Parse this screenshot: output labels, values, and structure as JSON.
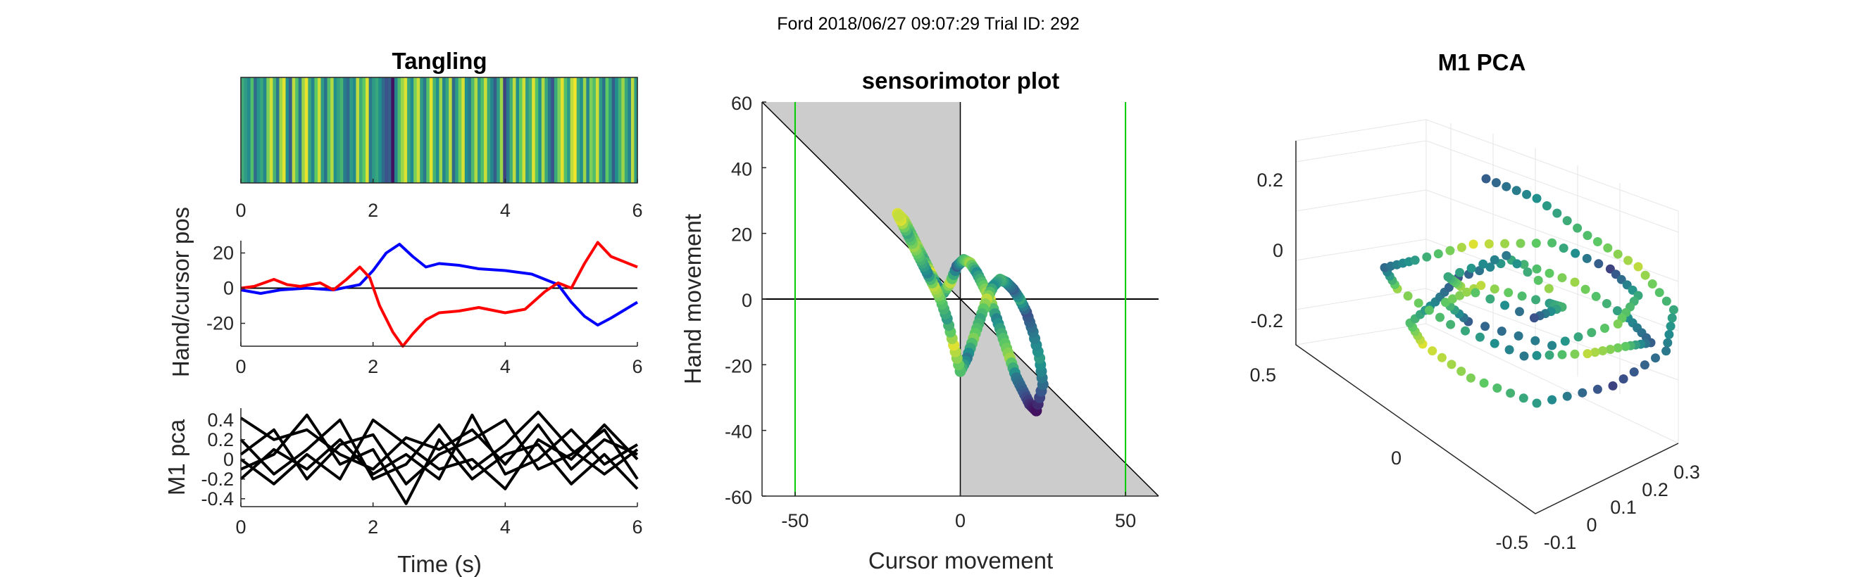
{
  "suptitle": "Ford 2018/06/27 09:07:29 Trial ID: 292",
  "colors": {
    "hand_pos": "#0000ff",
    "cursor_pos": "#ff0000",
    "m1_traces": "#000000",
    "boundary": "#00cc00",
    "tangle_region": "#cccccc",
    "colormap": [
      "#440154",
      "#3b528b",
      "#21908d",
      "#5dc963",
      "#fde725"
    ]
  },
  "chart_data": [
    {
      "type": "heatmap",
      "title": "Tangling",
      "xlim": [
        0,
        6
      ],
      "xticks": [
        "0",
        "2",
        "4",
        "6"
      ],
      "colormap": "viridis",
      "values": [
        0.62,
        0.55,
        0.48,
        0.7,
        0.35,
        0.52,
        0.6,
        0.45,
        0.8,
        0.93,
        0.65,
        0.4,
        0.85,
        0.96,
        0.5,
        0.3,
        0.9,
        0.7,
        0.4,
        0.85,
        0.97,
        0.6,
        0.45,
        0.75,
        0.92,
        0.55,
        0.38,
        0.7,
        0.88,
        0.5,
        0.58,
        0.66,
        0.42,
        0.35,
        0.55,
        0.48,
        0.9,
        0.62,
        0.75,
        0.95,
        0.4,
        0.55,
        0.6,
        0.5,
        0.35,
        0.25,
        0.3,
        0.05,
        0.45,
        0.7,
        0.85,
        0.95,
        0.6,
        0.48,
        0.8,
        0.92,
        0.55,
        0.4,
        0.72,
        0.96,
        0.65,
        0.5,
        0.85,
        0.45,
        0.6,
        0.9,
        0.35,
        0.55,
        0.78,
        0.94,
        0.5,
        0.42,
        0.68,
        0.88,
        0.55,
        0.7,
        0.92,
        0.6,
        0.45,
        0.3,
        0.55,
        0.85,
        0.2,
        0.4,
        0.62,
        0.9,
        0.5,
        0.75,
        0.93,
        0.55,
        0.65,
        0.95,
        0.72,
        0.5,
        0.88,
        0.6,
        0.4,
        0.25,
        0.6,
        0.8,
        0.96,
        0.7,
        0.55,
        0.9,
        0.98,
        0.62,
        0.5,
        0.85,
        0.45,
        0.8,
        0.7,
        0.92,
        0.55,
        0.38,
        0.75,
        0.55,
        0.3,
        0.5,
        0.65,
        0.85,
        0.6,
        0.45,
        0.9,
        0.55
      ]
    },
    {
      "type": "line",
      "ylabel": "Hand/cursor pos",
      "xlim": [
        0,
        6
      ],
      "ylim": [
        -33,
        27
      ],
      "xticks": [
        "0",
        "2",
        "4",
        "6"
      ],
      "yticks": [
        "20",
        "0",
        "-20"
      ],
      "yticks_values": [
        20,
        0,
        -20
      ],
      "zero_line": true,
      "series": [
        {
          "key": "hand",
          "x": [
            0,
            0.3,
            0.6,
            1.0,
            1.4,
            1.8,
            2.0,
            2.2,
            2.4,
            2.6,
            2.8,
            3.0,
            3.3,
            3.6,
            4.0,
            4.4,
            4.8,
            5.0,
            5.2,
            5.4,
            5.6,
            6.0
          ],
          "y": [
            -1,
            -3,
            -1,
            0,
            -1,
            2,
            10,
            20,
            25,
            18,
            12,
            14,
            13,
            11,
            10,
            8,
            2,
            -8,
            -16,
            -21,
            -17,
            -8
          ]
        },
        {
          "key": "cursor",
          "x": [
            0,
            0.2,
            0.5,
            0.7,
            0.9,
            1.2,
            1.4,
            1.6,
            1.8,
            1.95,
            2.1,
            2.3,
            2.45,
            2.6,
            2.8,
            3.0,
            3.3,
            3.6,
            4.0,
            4.3,
            4.6,
            4.8,
            5.0,
            5.2,
            5.4,
            5.6,
            6.0
          ],
          "y": [
            0,
            1,
            5,
            2,
            1,
            3,
            -1,
            5,
            12,
            6,
            -10,
            -25,
            -33,
            -26,
            -18,
            -14,
            -13,
            -11,
            -14,
            -12,
            -2,
            3,
            0,
            14,
            26,
            18,
            12
          ]
        }
      ]
    },
    {
      "type": "line",
      "ylabel": "M1 pca",
      "xlabel": "Time (s)",
      "xlim": [
        0,
        6
      ],
      "ylim": [
        -0.48,
        0.52
      ],
      "xticks": [
        "0",
        "2",
        "4",
        "6"
      ],
      "yticks": [
        "0.4",
        "0.2",
        "0",
        "-0.2",
        "-0.4"
      ],
      "yticks_values": [
        0.4,
        0.2,
        0,
        -0.2,
        -0.4
      ],
      "series": [
        {
          "x": [
            0,
            0.5,
            1.0,
            1.5,
            2.0,
            2.5,
            3.0,
            3.5,
            4.0,
            4.5,
            5.0,
            5.5,
            6.0
          ],
          "y": [
            0.42,
            0.2,
            0.3,
            0.05,
            -0.1,
            0.22,
            0.1,
            0.3,
            -0.05,
            0.35,
            -0.1,
            0.2,
            0.05
          ]
        },
        {
          "x": [
            0,
            0.5,
            1.0,
            1.5,
            2.0,
            2.5,
            3.0,
            3.5,
            4.0,
            4.5,
            5.0,
            5.5,
            6.0
          ],
          "y": [
            0.2,
            -0.15,
            0.1,
            0.4,
            -0.2,
            -0.05,
            0.35,
            -0.1,
            0.15,
            0.48,
            0.1,
            -0.15,
            0.1
          ]
        },
        {
          "x": [
            0,
            0.5,
            1.0,
            1.5,
            2.0,
            2.5,
            3.0,
            3.5,
            4.0,
            4.5,
            5.0,
            5.5,
            6.0
          ],
          "y": [
            0.05,
            0.3,
            -0.2,
            0.15,
            0.25,
            -0.25,
            0.05,
            0.2,
            0.4,
            -0.1,
            0.05,
            0.3,
            -0.2
          ]
        },
        {
          "x": [
            0,
            0.5,
            1.0,
            1.5,
            2.0,
            2.5,
            3.0,
            3.5,
            4.0,
            4.5,
            5.0,
            5.5,
            6.0
          ],
          "y": [
            -0.1,
            0.05,
            0.45,
            -0.05,
            0.1,
            -0.45,
            0.2,
            -0.2,
            0.05,
            0.15,
            -0.25,
            0.05,
            -0.3
          ]
        },
        {
          "x": [
            0,
            0.5,
            1.0,
            1.5,
            2.0,
            2.5,
            3.0,
            3.5,
            4.0,
            4.5,
            5.0,
            5.5,
            6.0
          ],
          "y": [
            -0.2,
            0.1,
            -0.1,
            0.2,
            -0.15,
            0.05,
            -0.2,
            0.45,
            -0.15,
            0.0,
            0.3,
            -0.05,
            0.15
          ]
        },
        {
          "x": [
            0,
            0.5,
            1.0,
            1.5,
            2.0,
            2.5,
            3.0,
            3.5,
            4.0,
            4.5,
            5.0,
            5.5,
            6.0
          ],
          "y": [
            0.0,
            -0.25,
            0.05,
            -0.2,
            0.4,
            0.15,
            -0.1,
            0.0,
            -0.3,
            0.2,
            0.0,
            0.35,
            0.0
          ]
        }
      ]
    },
    {
      "type": "scatter",
      "title": "sensorimotor plot",
      "xlabel": "Cursor movement",
      "ylabel": "Hand movement",
      "xlim": [
        -60,
        60
      ],
      "ylim": [
        -60,
        60
      ],
      "xticks": [
        "-50",
        "0",
        "50"
      ],
      "xticks_values": [
        -50,
        0,
        50
      ],
      "yticks": [
        "60",
        "40",
        "20",
        "0",
        "-20",
        "-40",
        "-60"
      ],
      "yticks_values": [
        60,
        40,
        20,
        0,
        -20,
        -40,
        -60
      ],
      "vertical_lines_x": [
        -50,
        50
      ],
      "colormap": "viridis",
      "x": [
        -19,
        -17,
        -15,
        -13,
        -11,
        -9,
        -7,
        -5,
        -3,
        -1,
        1,
        3,
        5,
        7,
        9,
        11,
        13,
        15,
        17,
        19,
        21,
        23,
        25,
        24,
        22,
        20,
        18,
        16,
        14,
        12,
        10,
        8,
        6,
        4,
        2,
        0,
        -2,
        -4,
        -6,
        -8,
        -10,
        -12,
        -14,
        -16,
        -18,
        -19
      ],
      "y": [
        26,
        24,
        20,
        16,
        12,
        8,
        4,
        2,
        5,
        10,
        12,
        11,
        8,
        4,
        0,
        -6,
        -12,
        -18,
        -24,
        -28,
        -32,
        -34,
        -26,
        -18,
        -10,
        -4,
        0,
        3,
        5,
        6,
        4,
        0,
        -6,
        -12,
        -18,
        -22,
        -14,
        -6,
        0,
        4,
        8,
        12,
        16,
        20,
        24,
        26
      ],
      "c": [
        0.95,
        0.9,
        0.7,
        0.85,
        0.6,
        0.95,
        0.4,
        0.55,
        0.9,
        0.3,
        0.65,
        0.85,
        0.5,
        0.75,
        0.95,
        0.45,
        0.7,
        0.85,
        0.4,
        0.3,
        0.15,
        0.05,
        0.35,
        0.55,
        0.4,
        0.25,
        0.6,
        0.3,
        0.45,
        0.65,
        0.5,
        0.9,
        0.6,
        0.8,
        0.4,
        0.7,
        0.95,
        0.55,
        0.75,
        0.9,
        0.45,
        0.65,
        0.85,
        0.6,
        0.95,
        0.9
      ]
    },
    {
      "type": "scatter",
      "title": "M1 PCA",
      "colormap": "viridis",
      "zticks": [
        "0.2",
        "0",
        "-0.2"
      ],
      "xticks": [
        "-0.1",
        "0",
        "0.1",
        "0.2",
        "0.3"
      ],
      "yticks": [
        "0.5",
        "0",
        "-0.5"
      ],
      "points_3d": [
        [
          0.05,
          0.1,
          0.25,
          0.3
        ],
        [
          0.1,
          0.0,
          0.2,
          0.5
        ],
        [
          0.15,
          -0.1,
          0.12,
          0.7
        ],
        [
          0.2,
          -0.2,
          0.05,
          0.9
        ],
        [
          0.22,
          -0.3,
          -0.05,
          0.6
        ],
        [
          0.18,
          -0.35,
          -0.15,
          0.4
        ],
        [
          0.1,
          -0.3,
          -0.22,
          0.2
        ],
        [
          0.0,
          -0.2,
          -0.25,
          0.55
        ],
        [
          -0.08,
          -0.1,
          -0.2,
          0.8
        ],
        [
          -0.1,
          0.05,
          -0.1,
          0.95
        ],
        [
          -0.05,
          0.2,
          0.0,
          0.7
        ],
        [
          0.05,
          0.3,
          0.1,
          0.45
        ],
        [
          0.12,
          0.35,
          0.18,
          0.25
        ],
        [
          0.2,
          0.3,
          0.22,
          0.6
        ],
        [
          0.25,
          0.15,
          0.15,
          0.85
        ],
        [
          0.28,
          0.0,
          0.05,
          0.5
        ],
        [
          0.25,
          -0.15,
          -0.05,
          0.3
        ],
        [
          0.15,
          -0.25,
          -0.12,
          0.75
        ],
        [
          0.05,
          -0.3,
          -0.18,
          0.9
        ],
        [
          -0.05,
          -0.25,
          -0.2,
          0.4
        ],
        [
          -0.12,
          -0.1,
          -0.12,
          0.65
        ],
        [
          -0.15,
          0.05,
          -0.02,
          0.85
        ],
        [
          -0.1,
          0.2,
          0.08,
          0.35
        ],
        [
          0.0,
          0.28,
          0.15,
          0.55
        ],
        [
          0.1,
          0.25,
          0.2,
          0.95
        ],
        [
          0.18,
          0.1,
          0.18,
          0.7
        ],
        [
          0.22,
          -0.05,
          0.1,
          0.2
        ],
        [
          0.2,
          -0.2,
          0.0,
          0.6
        ],
        [
          0.12,
          -0.28,
          -0.1,
          0.8
        ],
        [
          0.02,
          -0.22,
          -0.15,
          0.45
        ],
        [
          -0.06,
          -0.05,
          -0.08,
          0.3
        ],
        [
          -0.02,
          0.12,
          0.02,
          0.75
        ],
        [
          0.08,
          0.18,
          0.1,
          0.9
        ],
        [
          0.15,
          0.05,
          0.05,
          0.55
        ],
        [
          0.1,
          -0.1,
          -0.02,
          0.65
        ],
        [
          0.02,
          -0.15,
          -0.08,
          0.25
        ],
        [
          -0.05,
          0.0,
          0.0,
          0.85
        ],
        [
          0.0,
          0.15,
          0.08,
          0.6
        ],
        [
          0.08,
          0.08,
          0.12,
          0.4
        ],
        [
          0.12,
          -0.05,
          0.02,
          0.95
        ]
      ]
    }
  ]
}
